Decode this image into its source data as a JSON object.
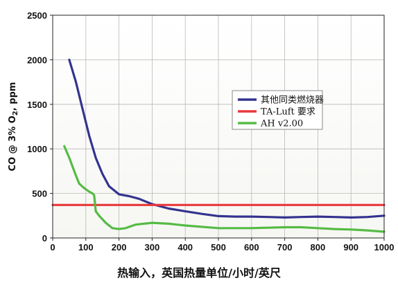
{
  "chart_data": {
    "type": "line",
    "title": "",
    "xlabel": "热输入，英国热量单位/小时/英尺",
    "ylabel_parts": [
      "CO @ 3% O",
      "2",
      ", ppm"
    ],
    "xlim": [
      0,
      1000
    ],
    "ylim": [
      0,
      2500
    ],
    "x_ticks": [
      0,
      100,
      200,
      300,
      400,
      500,
      600,
      700,
      800,
      900,
      1000
    ],
    "y_ticks": [
      0,
      500,
      1000,
      1500,
      2000,
      2500
    ],
    "grid": true,
    "legend_position": "right",
    "series": [
      {
        "name": "其他同类燃烧器",
        "color": "#33338f",
        "x": [
          50,
          70,
          90,
          110,
          130,
          150,
          170,
          200,
          230,
          260,
          300,
          350,
          400,
          450,
          500,
          550,
          600,
          650,
          700,
          750,
          800,
          850,
          900,
          950,
          1000
        ],
        "y": [
          2000,
          1750,
          1450,
          1150,
          900,
          720,
          580,
          490,
          470,
          440,
          380,
          330,
          300,
          270,
          245,
          240,
          240,
          235,
          230,
          235,
          240,
          235,
          230,
          235,
          250
        ]
      },
      {
        "name": "TA-Luft 要求",
        "color": "#e8383a",
        "x": [
          0,
          1000
        ],
        "y": [
          370,
          370
        ]
      },
      {
        "name": "AH v2.00",
        "color": "#55bb44",
        "x": [
          35,
          50,
          70,
          80,
          95,
          110,
          120,
          125,
          130,
          140,
          160,
          180,
          200,
          220,
          250,
          300,
          350,
          400,
          500,
          600,
          700,
          750,
          800,
          850,
          900,
          950,
          1000
        ],
        "y": [
          1030,
          900,
          700,
          610,
          560,
          520,
          500,
          480,
          300,
          250,
          170,
          110,
          100,
          110,
          150,
          170,
          160,
          140,
          110,
          110,
          120,
          120,
          110,
          100,
          95,
          85,
          70
        ]
      }
    ]
  }
}
